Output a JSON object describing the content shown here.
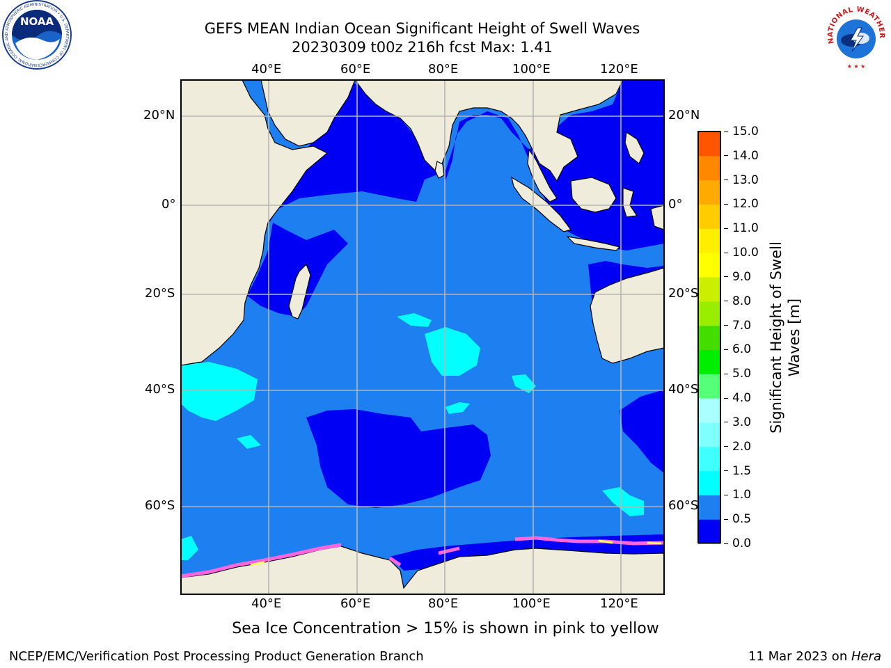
{
  "title": {
    "line1": "GEFS MEAN Indian Ocean Significant Height of Swell Waves",
    "line2": "20230309 t00z 216h fcst   Max: 1.41"
  },
  "map": {
    "lon_labels": [
      "40°E",
      "60°E",
      "80°E",
      "100°E",
      "120°E"
    ],
    "lat_labels": [
      "20°N",
      "0°",
      "20°S",
      "40°S",
      "60°S"
    ],
    "colors": {
      "land": "#efecdc",
      "ocean_dark": "#0000f5",
      "ocean_mid": "#1e7ff0",
      "ocean_light": "#00ffff",
      "grid": "#b4b4b4",
      "ice_pink": "#ff66dd",
      "ice_yellow": "#ffff66"
    }
  },
  "colorbar": {
    "label": "Significant Height of Swell Waves [m]",
    "tick_labels": [
      "0.0",
      "0.5",
      "1.0",
      "1.5",
      "2.0",
      "3.0",
      "4.0",
      "5.0",
      "6.0",
      "7.0",
      "8.0",
      "9.0",
      "10.0",
      "11.0",
      "12.0",
      "13.0",
      "14.0",
      "15.0"
    ],
    "colors": [
      "#0000f5",
      "#1e7ff0",
      "#00ffff",
      "#40ffff",
      "#80ffff",
      "#aaffff",
      "#55ff77",
      "#00ee00",
      "#44dd00",
      "#99ee00",
      "#ccee00",
      "#ffff00",
      "#ffee00",
      "#ffcc00",
      "#ffaa00",
      "#ff8800",
      "#ff5500",
      "#ff2200",
      "#ff0000"
    ]
  },
  "note": "Sea Ice Concentration > 15% is shown in pink to yellow",
  "footer": {
    "left": "NCEP/EMC/Verification Post Processing Product Generation Branch",
    "right_date": "11 Mar 2023 on ",
    "right_machine": "Hera"
  },
  "logos": {
    "noaa_text": "NOAA",
    "noaa_ring": "NATIONAL OCEANIC AND ATMOSPHERIC ADMINISTRATION • U.S. DEPARTMENT OF COMMERCE",
    "nws_ring": "NATIONAL WEATHER SERVICE"
  }
}
